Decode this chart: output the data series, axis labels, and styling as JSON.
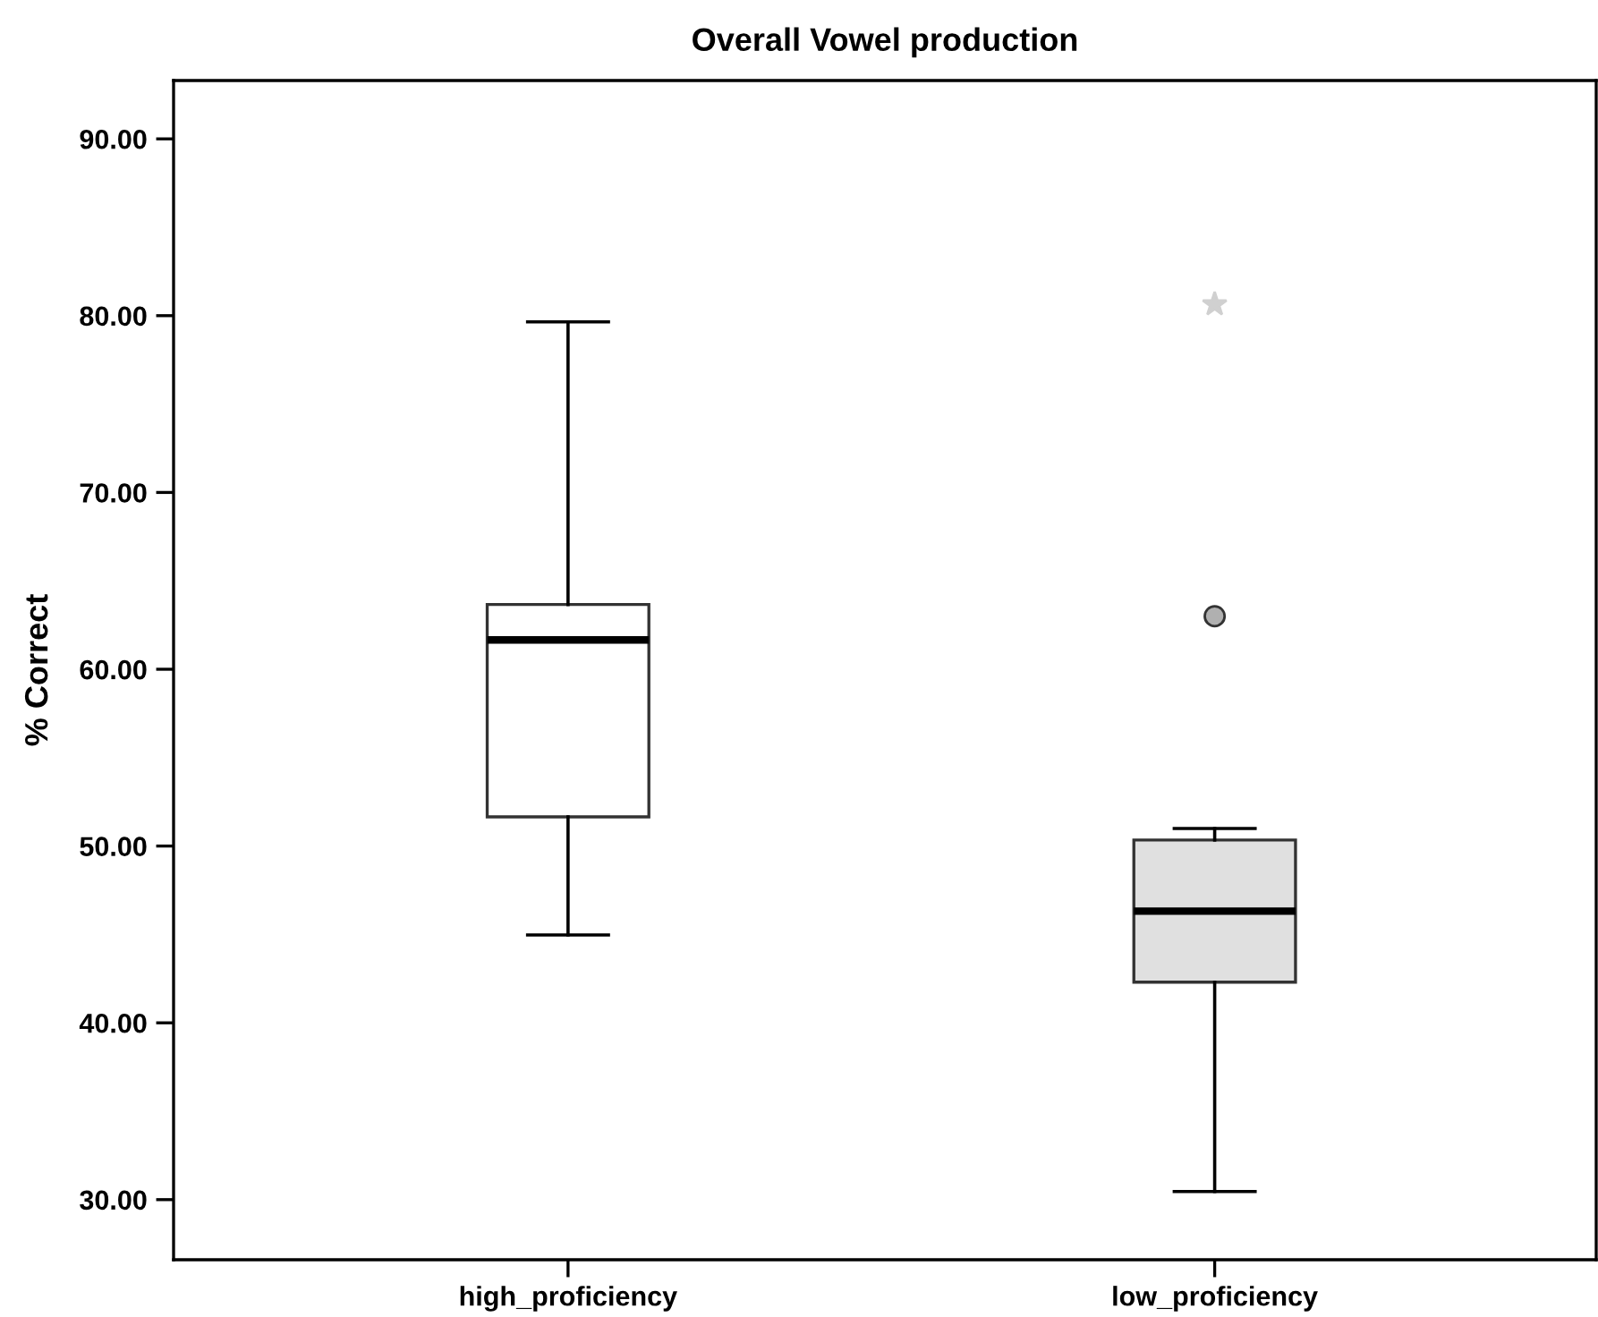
{
  "chart_data": {
    "type": "box",
    "title": "Overall Vowel production",
    "ylabel": "% Correct",
    "categories": [
      "high_proficiency",
      "low_proficiency"
    ],
    "colors": [
      "#ffffff",
      "#e0e0e0"
    ],
    "boxes": [
      {
        "low": 44.97,
        "q1": 51.65,
        "median": 61.66,
        "q3": 63.66,
        "high": 79.65
      },
      {
        "low": 30.46,
        "q1": 42.3,
        "median": 46.32,
        "q3": 50.34,
        "high": 50.99,
        "outliers": [
          63.0,
          80.64
        ]
      }
    ],
    "ylim": [
      26.6,
      93.3
    ],
    "yticks": [
      {
        "value": 30,
        "label": "30.00"
      },
      {
        "value": 40,
        "label": "40.00"
      },
      {
        "value": 50,
        "label": "50.00"
      },
      {
        "value": 60,
        "label": "60.00"
      },
      {
        "value": 70,
        "label": "70.00"
      },
      {
        "value": 80,
        "label": "80.00"
      },
      {
        "value": 90,
        "label": "90.00"
      }
    ],
    "grid": false,
    "legend": false
  }
}
